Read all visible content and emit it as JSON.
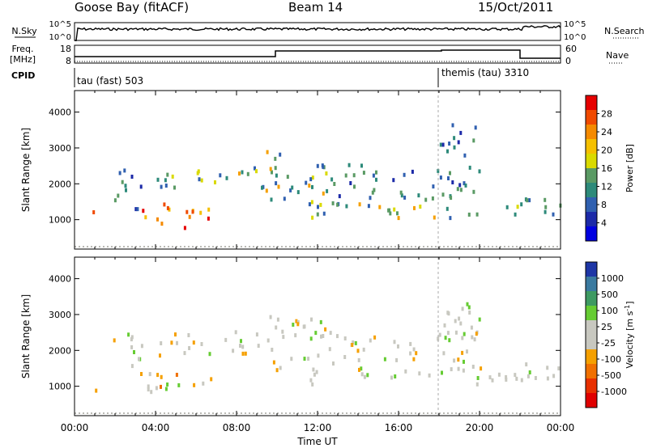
{
  "header": {
    "station": "Goose Bay (fitACF)",
    "beam": "Beam 14",
    "date": "15/Oct/2011"
  },
  "strips": {
    "nsky_label": "N.Sky",
    "nsky_ticks": [
      "10^5",
      "10^0"
    ],
    "nsearch_label": "N.Search",
    "freq_label_1": "Freq.",
    "freq_label_2": "[MHz]",
    "freq_ticks": [
      "18",
      "8"
    ],
    "nave_label": "Nave",
    "nave_ticks": [
      "60",
      "0"
    ],
    "cpid_label": "CPID",
    "cpid_1": "tau (fast) 503",
    "cpid_2": "themis (tau) 3310"
  },
  "chart_data": [
    {
      "type": "heatmap",
      "name": "power",
      "ylabel": "Slant Range [km]",
      "yticks": [
        "4000",
        "3000",
        "2000",
        "1000"
      ],
      "ylim": [
        180,
        4600
      ],
      "xlim": [
        0,
        24
      ],
      "colorbar_label": "Power [dB]",
      "colorbar_ticks": [
        "28",
        "24",
        "20",
        "16",
        "12",
        "8",
        "4"
      ],
      "colorbar_colors": [
        "#e60000",
        "#f04a00",
        "#f58a00",
        "#f5c000",
        "#dada00",
        "#5a9a64",
        "#2d8a7a",
        "#3060b0",
        "#1c2aa8",
        "#0000e0"
      ],
      "echo_regions": [
        {
          "t0": 0.5,
          "t1": 1.1,
          "r0": 900,
          "r1": 1300,
          "level": "high"
        },
        {
          "t0": 1.8,
          "t1": 3.3,
          "r0": 1300,
          "r1": 2600,
          "level": "low"
        },
        {
          "t0": 3.2,
          "t1": 7.0,
          "r0": 800,
          "r1": 1500,
          "level": "high"
        },
        {
          "t0": 4.0,
          "t1": 9.3,
          "r0": 1900,
          "r1": 2600,
          "level": "mid"
        },
        {
          "t0": 9.3,
          "t1": 12.5,
          "r0": 1500,
          "r1": 3000,
          "level": "mid"
        },
        {
          "t0": 11.5,
          "t1": 22.5,
          "r0": 1100,
          "r1": 1600,
          "level": "mid"
        },
        {
          "t0": 12.0,
          "t1": 20.0,
          "r0": 1600,
          "r1": 2600,
          "level": "low"
        },
        {
          "t0": 18.0,
          "t1": 20.0,
          "r0": 2600,
          "r1": 3700,
          "level": "low"
        },
        {
          "t0": 22.0,
          "t1": 24.0,
          "r0": 1100,
          "r1": 1700,
          "level": "low"
        }
      ]
    },
    {
      "type": "heatmap",
      "name": "velocity",
      "ylabel": "Slant Range [km]",
      "yticks": [
        "4000",
        "3000",
        "2000",
        "1000"
      ],
      "ylim": [
        180,
        4600
      ],
      "xlim": [
        0,
        24
      ],
      "xlabel": "Time UT",
      "xticks": [
        "00:00",
        "04:00",
        "08:00",
        "12:00",
        "16:00",
        "20:00",
        "00:00"
      ],
      "colorbar_label": "Velocity [m s",
      "colorbar_label_sup": "-1",
      "colorbar_ticks": [
        "1000",
        "500",
        "100",
        "25",
        "-25",
        "-100",
        "-500",
        "-1000"
      ],
      "colorbar_colors": [
        "#1e36a6",
        "#3a7aa0",
        "#3e9a62",
        "#66cc33",
        "#c8c8c0",
        "#c8c8c0",
        "#f5a000",
        "#f07000",
        "#e83000",
        "#e00000"
      ]
    }
  ]
}
